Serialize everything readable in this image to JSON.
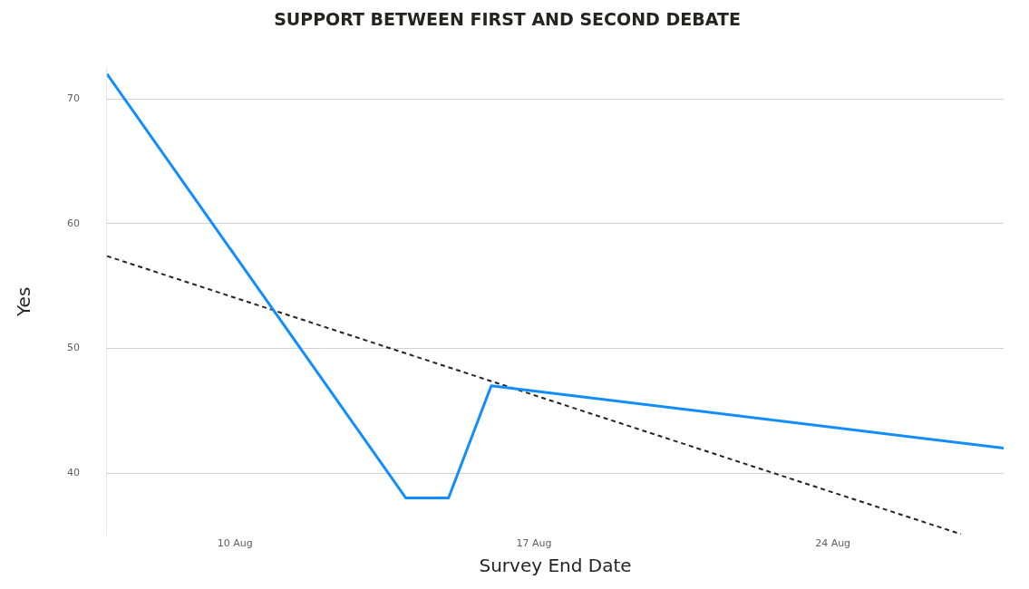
{
  "chart_data": {
    "type": "line",
    "title": "SUPPORT BETWEEN FIRST AND SECOND DEBATE",
    "xlabel": "Survey End Date",
    "ylabel": "Yes",
    "xlim": [
      "--08-07",
      "--08-28"
    ],
    "xticks": [
      {
        "value": "--08-10",
        "label": "10 Aug"
      },
      {
        "value": "--08-17",
        "label": "17 Aug"
      },
      {
        "value": "--08-24",
        "label": "24 Aug"
      }
    ],
    "ylim": [
      35,
      72.5
    ],
    "yticks": [
      40,
      50,
      60,
      70
    ],
    "grid": "y",
    "marker": "none",
    "series": [
      {
        "color": "#118dff",
        "line_style": "solid",
        "x": [
          "--08-07",
          "--08-14",
          "--08-15",
          "--08-16",
          "--08-28"
        ],
        "values": [
          72,
          38,
          38,
          47,
          42
        ]
      },
      {
        "type": "line",
        "color": "#252423",
        "line_style": "dashed",
        "x": [
          "--08-07",
          "--08-27"
        ],
        "values": [
          57.4,
          35.1
        ]
      }
    ]
  }
}
